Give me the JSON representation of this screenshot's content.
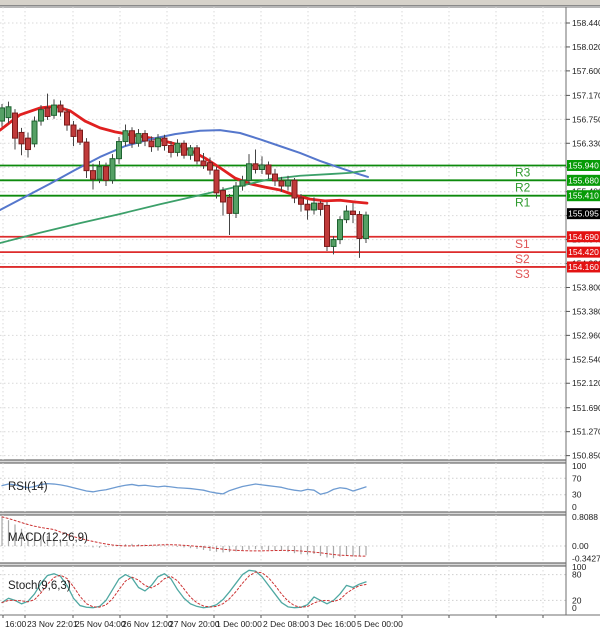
{
  "window": {
    "bg": "#ffffff",
    "top_bar_color": "#d6d2ca",
    "grid_color": "#d9d9d9",
    "border_color": "#6f6f6f",
    "axis_text_color": "#1c1c1c"
  },
  "chart_data": {
    "type": "candlestick",
    "title": "",
    "panels": [
      "price",
      "rsi",
      "macd",
      "stoch"
    ],
    "price_axis_labels": [
      "158.440",
      "158.020",
      "157.600",
      "157.170",
      "156.750",
      "156.330",
      "155.910",
      "155.480",
      "155.060",
      "154.640",
      "154.220",
      "153.800",
      "153.380",
      "152.960",
      "152.540",
      "152.120",
      "151.690",
      "151.270",
      "150.850"
    ],
    "time_labels": [
      "16:00",
      "23 Nov 22:01",
      "25 Nov 04:00",
      "26 Nov 12:00",
      "27 Nov 20:00",
      "1 Dec 00:00",
      "2 Dec 08:00",
      "3 Dec 16:00",
      "5 Dec 00:00"
    ],
    "current_price": {
      "value": 155.095,
      "label": "155.095",
      "box_color": "#000000",
      "text_color": "#ffffff"
    },
    "pivots": [
      {
        "name": "R3",
        "price": 155.94,
        "label": "155.940",
        "line_color": "#0c8a0c",
        "box_color": "#079b07",
        "letter_color": "#2f9b2f"
      },
      {
        "name": "R2",
        "price": 155.68,
        "label": "155.680",
        "line_color": "#0c8a0c",
        "box_color": "#079b07",
        "letter_color": "#2f9b2f"
      },
      {
        "name": "R1",
        "price": 155.41,
        "label": "155.410",
        "line_color": "#0c8a0c",
        "box_color": "#079b07",
        "letter_color": "#2f9b2f"
      },
      {
        "name": "S1",
        "price": 154.69,
        "label": "154.690",
        "line_color": "#dd2c2c",
        "box_color": "#e31212",
        "letter_color": "#e05555"
      },
      {
        "name": "S2",
        "price": 154.42,
        "label": "154.420",
        "line_color": "#dd2c2c",
        "box_color": "#e31212",
        "letter_color": "#e05555"
      },
      {
        "name": "S3",
        "price": 154.16,
        "label": "154.160",
        "line_color": "#dd2c2c",
        "box_color": "#e31212",
        "letter_color": "#e05555"
      }
    ],
    "candles_ohlc": [
      [
        156.72,
        157.02,
        156.62,
        156.95
      ],
      [
        156.78,
        157.06,
        156.68,
        156.97
      ],
      [
        156.86,
        156.93,
        156.22,
        156.42
      ],
      [
        156.52,
        156.6,
        156.12,
        156.32
      ],
      [
        156.42,
        156.52,
        156.08,
        156.22
      ],
      [
        156.32,
        156.8,
        156.26,
        156.72
      ],
      [
        156.72,
        157.0,
        156.64,
        156.92
      ],
      [
        156.95,
        157.2,
        156.74,
        156.8
      ],
      [
        156.82,
        157.1,
        156.76,
        157.0
      ],
      [
        157.0,
        157.08,
        156.8,
        156.88
      ],
      [
        156.88,
        156.94,
        156.55,
        156.65
      ],
      [
        156.65,
        156.72,
        156.28,
        156.45
      ],
      [
        156.56,
        156.6,
        156.3,
        156.35
      ],
      [
        156.35,
        156.42,
        155.72,
        155.85
      ],
      [
        155.85,
        155.97,
        155.52,
        155.7
      ],
      [
        155.7,
        156.02,
        155.63,
        155.92
      ],
      [
        155.92,
        155.99,
        155.58,
        155.68
      ],
      [
        155.68,
        156.14,
        155.62,
        156.06
      ],
      [
        156.06,
        156.44,
        155.97,
        156.36
      ],
      [
        156.36,
        156.66,
        156.28,
        156.55
      ],
      [
        156.55,
        156.61,
        156.25,
        156.33
      ],
      [
        156.33,
        156.58,
        156.27,
        156.5
      ],
      [
        156.5,
        156.56,
        156.28,
        156.37
      ],
      [
        156.37,
        156.45,
        156.18,
        156.27
      ],
      [
        156.27,
        156.49,
        156.2,
        156.42
      ],
      [
        156.42,
        156.48,
        156.2,
        156.29
      ],
      [
        156.29,
        156.37,
        156.08,
        156.17
      ],
      [
        156.17,
        156.4,
        156.1,
        156.33
      ],
      [
        156.33,
        156.38,
        156.06,
        156.12
      ],
      [
        156.12,
        156.3,
        156.04,
        156.25
      ],
      [
        156.25,
        156.3,
        155.96,
        156.02
      ],
      [
        156.02,
        156.16,
        155.88,
        155.94
      ],
      [
        155.99,
        156.08,
        155.78,
        155.86
      ],
      [
        155.86,
        155.92,
        155.36,
        155.46
      ],
      [
        155.5,
        155.56,
        155.06,
        155.3
      ],
      [
        155.38,
        155.44,
        154.72,
        155.1
      ],
      [
        155.1,
        155.65,
        155.02,
        155.58
      ],
      [
        155.58,
        155.76,
        155.5,
        155.68
      ],
      [
        155.68,
        156.14,
        155.6,
        155.97
      ],
      [
        155.97,
        156.22,
        155.8,
        155.87
      ],
      [
        155.87,
        156.1,
        155.79,
        155.95
      ],
      [
        155.95,
        156.01,
        155.7,
        155.79
      ],
      [
        155.79,
        155.88,
        155.58,
        155.67
      ],
      [
        155.67,
        155.74,
        155.48,
        155.58
      ],
      [
        155.58,
        155.76,
        155.5,
        155.68
      ],
      [
        155.68,
        155.72,
        155.28,
        155.37
      ],
      [
        155.37,
        155.44,
        155.13,
        155.26
      ],
      [
        155.26,
        155.34,
        154.99,
        155.16
      ],
      [
        155.16,
        155.38,
        155.08,
        155.28
      ],
      [
        155.28,
        155.32,
        155.06,
        155.17
      ],
      [
        155.24,
        155.3,
        154.44,
        154.52
      ],
      [
        154.52,
        154.7,
        154.38,
        154.64
      ],
      [
        154.64,
        155.05,
        154.56,
        154.99
      ],
      [
        154.99,
        155.24,
        154.93,
        155.14
      ],
      [
        155.14,
        155.28,
        154.93,
        155.08
      ],
      [
        155.08,
        155.14,
        154.32,
        154.66
      ],
      [
        154.66,
        155.13,
        154.58,
        155.07
      ]
    ],
    "candle_colors": {
      "up_fill": "#55a065",
      "up_stroke": "#1d6330",
      "down_fill": "#c03a3a",
      "down_stroke": "#7a1a1a",
      "wick": "#444444"
    },
    "moving_averages": [
      {
        "name": "fast-ma",
        "color": "#e02020",
        "width": 2.8,
        "points": [
          [
            0,
            156.56
          ],
          [
            20,
            156.83
          ],
          [
            40,
            156.95
          ],
          [
            55,
            156.98
          ],
          [
            70,
            156.9
          ],
          [
            85,
            156.72
          ],
          [
            100,
            156.6
          ],
          [
            115,
            156.53
          ],
          [
            130,
            156.48
          ],
          [
            145,
            156.44
          ],
          [
            160,
            156.39
          ],
          [
            175,
            156.32
          ],
          [
            190,
            156.21
          ],
          [
            205,
            156.07
          ],
          [
            220,
            155.9
          ],
          [
            235,
            155.72
          ],
          [
            250,
            155.62
          ],
          [
            265,
            155.56
          ],
          [
            280,
            155.51
          ],
          [
            295,
            155.42
          ],
          [
            310,
            155.35
          ],
          [
            325,
            155.32
          ],
          [
            340,
            155.33
          ],
          [
            355,
            155.3
          ],
          [
            367,
            155.28
          ]
        ]
      },
      {
        "name": "mid-ma",
        "color": "#5577cc",
        "width": 2.0,
        "points": [
          [
            0,
            155.16
          ],
          [
            25,
            155.39
          ],
          [
            50,
            155.62
          ],
          [
            75,
            155.86
          ],
          [
            100,
            156.09
          ],
          [
            125,
            156.28
          ],
          [
            150,
            156.4
          ],
          [
            175,
            156.49
          ],
          [
            200,
            156.55
          ],
          [
            220,
            156.56
          ],
          [
            240,
            156.51
          ],
          [
            260,
            156.4
          ],
          [
            280,
            156.28
          ],
          [
            300,
            156.16
          ],
          [
            320,
            156.02
          ],
          [
            340,
            155.9
          ],
          [
            355,
            155.81
          ],
          [
            368,
            155.74
          ]
        ]
      },
      {
        "name": "slow-ma",
        "color": "#3ca06a",
        "width": 1.8,
        "points": [
          [
            0,
            154.58
          ],
          [
            40,
            154.76
          ],
          [
            80,
            154.93
          ],
          [
            120,
            155.09
          ],
          [
            160,
            155.26
          ],
          [
            200,
            155.42
          ],
          [
            240,
            155.58
          ],
          [
            270,
            155.7
          ],
          [
            300,
            155.76
          ],
          [
            330,
            155.79
          ],
          [
            350,
            155.81
          ],
          [
            365,
            155.85
          ]
        ]
      }
    ],
    "rsi": {
      "label": "RSI(14)",
      "line_color": "#6e9bd1",
      "axis_labels": [
        "100",
        "70",
        "30",
        "0"
      ],
      "guides": [
        70,
        30
      ],
      "values": [
        52,
        56,
        54,
        50,
        47,
        50,
        55,
        57,
        56,
        54,
        51,
        47,
        43,
        39,
        37,
        40,
        42,
        46,
        50,
        53,
        55,
        52,
        53,
        51,
        49,
        51,
        49,
        47,
        46,
        45,
        43,
        41,
        37,
        34,
        32,
        40,
        45,
        50,
        53,
        56,
        54,
        52,
        50,
        48,
        44,
        41,
        39,
        43,
        41,
        31,
        35,
        43,
        47,
        45,
        39,
        44,
        49
      ]
    },
    "macd": {
      "label": "MACD(12,26,9)",
      "histogram_color": "#a8a8a8",
      "signal_color": "#cc3333",
      "axis_labels": [
        "0.8088",
        "0.00",
        "-0.3427"
      ],
      "max": 0.8088,
      "min": -0.3427,
      "values": [
        0.81,
        0.72,
        0.6,
        0.48,
        0.38,
        0.32,
        0.3,
        0.28,
        0.24,
        0.18,
        0.12,
        0.06,
        0.02,
        -0.01,
        -0.04,
        -0.05,
        -0.03,
        0.0,
        0.03,
        0.05,
        0.06,
        0.05,
        0.04,
        0.03,
        0.03,
        0.02,
        0.0,
        -0.02,
        -0.04,
        -0.06,
        -0.08,
        -0.11,
        -0.14,
        -0.16,
        -0.18,
        -0.17,
        -0.15,
        -0.12,
        -0.1,
        -0.09,
        -0.1,
        -0.11,
        -0.12,
        -0.14,
        -0.17,
        -0.2,
        -0.23,
        -0.24,
        -0.22,
        -0.28,
        -0.32,
        -0.34,
        -0.3,
        -0.26,
        -0.29,
        -0.27,
        -0.26
      ]
    },
    "stoch": {
      "label": "Stoch(9,6,3)",
      "k_color": "#4fa8a2",
      "d_color": "#cc3333",
      "axis_labels": [
        "100",
        "80",
        "20",
        "0"
      ],
      "guides": [
        80,
        20
      ],
      "k": [
        15,
        25,
        20,
        12,
        18,
        35,
        60,
        78,
        82,
        76,
        55,
        25,
        8,
        4,
        3,
        6,
        20,
        45,
        70,
        80,
        72,
        50,
        42,
        55,
        75,
        82,
        70,
        45,
        25,
        12,
        6,
        3,
        5,
        10,
        22,
        40,
        60,
        80,
        90,
        88,
        75,
        55,
        35,
        15,
        5,
        3,
        4,
        10,
        28,
        20,
        12,
        20,
        35,
        55,
        50,
        58,
        63
      ]
    }
  }
}
